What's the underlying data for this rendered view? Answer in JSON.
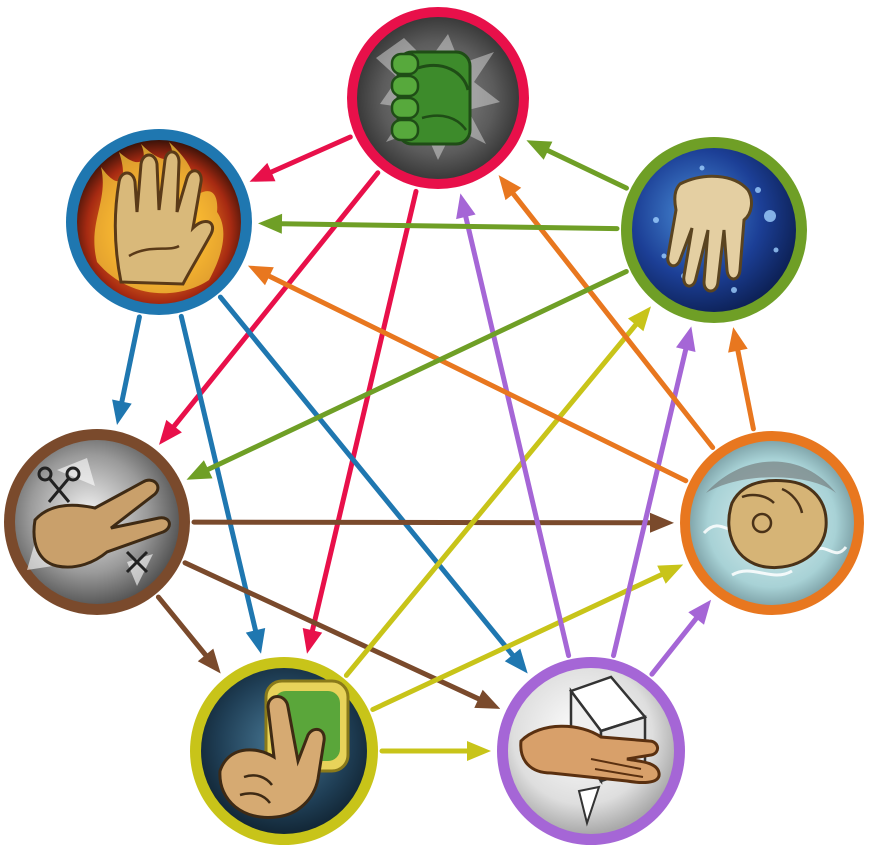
{
  "diagram": {
    "kind": "seven-way gesture game cycle",
    "nodes": [
      {
        "id": "rock",
        "icon": "green-fist-icon",
        "ring": "#e8104a"
      },
      {
        "id": "fire",
        "icon": "flaming-open-hand-icon",
        "ring": "#1f77b0"
      },
      {
        "id": "scissors",
        "icon": "scissors-hand-icon",
        "ring": "#7a4a2c"
      },
      {
        "id": "sponge",
        "icon": "pointing-hand-sponge-icon",
        "ring": "#c8c419"
      },
      {
        "id": "paper",
        "icon": "flat-hand-paper-icon",
        "ring": "#a566d6"
      },
      {
        "id": "air",
        "icon": "fist-wind-icon",
        "ring": "#e8771f"
      },
      {
        "id": "water",
        "icon": "dripping-hand-water-icon",
        "ring": "#6f9f26"
      }
    ],
    "edges": [
      {
        "from": "rock",
        "to": "fire"
      },
      {
        "from": "rock",
        "to": "scissors"
      },
      {
        "from": "rock",
        "to": "sponge"
      },
      {
        "from": "fire",
        "to": "scissors"
      },
      {
        "from": "fire",
        "to": "sponge"
      },
      {
        "from": "fire",
        "to": "paper"
      },
      {
        "from": "scissors",
        "to": "sponge"
      },
      {
        "from": "scissors",
        "to": "paper"
      },
      {
        "from": "scissors",
        "to": "air"
      },
      {
        "from": "sponge",
        "to": "paper"
      },
      {
        "from": "sponge",
        "to": "air"
      },
      {
        "from": "sponge",
        "to": "water"
      },
      {
        "from": "paper",
        "to": "air"
      },
      {
        "from": "paper",
        "to": "water"
      },
      {
        "from": "paper",
        "to": "rock"
      },
      {
        "from": "air",
        "to": "water"
      },
      {
        "from": "air",
        "to": "rock"
      },
      {
        "from": "air",
        "to": "fire"
      },
      {
        "from": "water",
        "to": "rock"
      },
      {
        "from": "water",
        "to": "fire"
      },
      {
        "from": "water",
        "to": "scissors"
      }
    ]
  }
}
